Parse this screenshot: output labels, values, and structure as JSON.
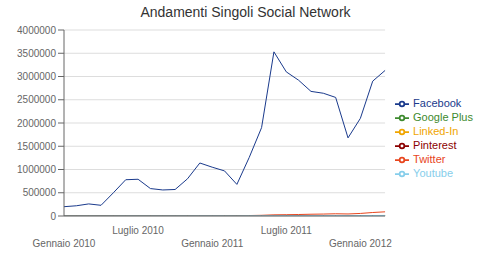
{
  "chart_data": {
    "type": "line",
    "title": "Andamenti Singoli Social Network",
    "categories": [
      "Gennaio 2010",
      null,
      null,
      null,
      null,
      null,
      "Luglio 2010",
      null,
      null,
      null,
      null,
      null,
      "Gennaio 2011",
      null,
      null,
      null,
      null,
      null,
      "Luglio 2011",
      null,
      null,
      null,
      null,
      null,
      "Gennaio 2012",
      null,
      null
    ],
    "ylim": [
      0,
      4000000
    ],
    "yticks": [
      0,
      500000,
      1000000,
      1500000,
      2000000,
      2500000,
      3000000,
      3500000,
      4000000
    ],
    "grid": "y",
    "legend": "right",
    "series": [
      {
        "name": "Facebook",
        "color": "#1a3a8c",
        "values": [
          200000,
          220000,
          260000,
          230000,
          500000,
          780000,
          790000,
          590000,
          560000,
          570000,
          800000,
          1140000,
          1050000,
          970000,
          680000,
          1260000,
          1900000,
          3530000,
          3100000,
          2920000,
          2680000,
          2640000,
          2550000,
          1680000,
          2100000,
          2900000,
          3130000
        ]
      },
      {
        "name": "Twitter",
        "color": "#e8461e",
        "values": [
          2000,
          2000,
          3000,
          2000,
          4000,
          5000,
          5000,
          4500,
          4500,
          4500,
          6000,
          8000,
          8000,
          7000,
          6000,
          10000,
          15000,
          25000,
          28000,
          32000,
          38000,
          42000,
          48000,
          44000,
          55000,
          75000,
          90000
        ]
      },
      {
        "name": "Linked-In",
        "color": "#f0a500",
        "values": [
          1000,
          1000,
          1200,
          1000,
          1500,
          2000,
          2000,
          1800,
          1800,
          1800,
          2200,
          3000,
          3000,
          2800,
          2200,
          3500,
          4500,
          6000,
          6500,
          7000,
          7500,
          8000,
          8500,
          7500,
          8500,
          10000,
          11000
        ]
      },
      {
        "name": "Google Plus",
        "color": "#3d8a2e",
        "values": [
          0,
          0,
          0,
          0,
          0,
          0,
          0,
          0,
          0,
          0,
          0,
          0,
          0,
          0,
          0,
          0,
          0,
          3000,
          5000,
          6000,
          7000,
          7500,
          8000,
          7000,
          8000,
          9000,
          10000
        ]
      },
      {
        "name": "Pinterest",
        "color": "#8b0000",
        "values": [
          500,
          500,
          600,
          500,
          700,
          900,
          900,
          800,
          800,
          800,
          1000,
          1300,
          1300,
          1200,
          1000,
          1600,
          2000,
          2800,
          3000,
          3200,
          3500,
          3700,
          4000,
          3500,
          4000,
          4800,
          5300
        ]
      },
      {
        "name": "Youtube",
        "color": "#87ceeb",
        "values": [
          1500,
          1500,
          1800,
          1500,
          2200,
          3000,
          3000,
          2700,
          2700,
          2700,
          3200,
          4000,
          4000,
          3700,
          3000,
          4500,
          5500,
          7000,
          7500,
          8000,
          8500,
          9000,
          9500,
          8500,
          9500,
          11000,
          12000
        ]
      }
    ]
  }
}
